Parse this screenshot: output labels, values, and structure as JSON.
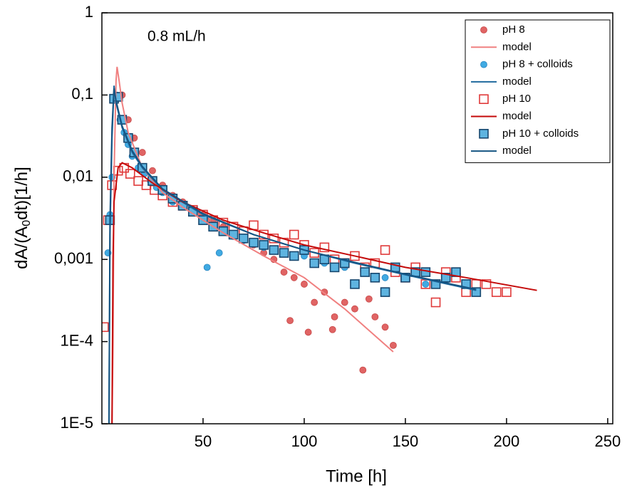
{
  "chart_data": {
    "type": "scatter",
    "annotation": "0.8 mL/h",
    "xlabel": "Time [h]",
    "ylabel": {
      "pre": "dA/(A",
      "sub": "0",
      "post": "dt)[1/h]"
    },
    "xlim": [
      0,
      252.5
    ],
    "xticks": [
      50,
      100,
      150,
      200,
      250
    ],
    "ylim": [
      1e-05,
      1
    ],
    "yscale": "log",
    "yticks": [
      {
        "value": 1e-05,
        "label": "1E-5"
      },
      {
        "value": 0.0001,
        "label": "1E-4"
      },
      {
        "value": 0.001,
        "label": "0,001"
      },
      {
        "value": 0.01,
        "label": "0,01"
      },
      {
        "value": 0.1,
        "label": "0,1"
      },
      1
    ],
    "legend": "upper right",
    "series": [
      {
        "name": "pH 8",
        "marker": "circle",
        "color": "#e06464",
        "edgecolor": "#c84848",
        "x": [
          7,
          10,
          13,
          16,
          20,
          25,
          30,
          35,
          40,
          45,
          50,
          55,
          60,
          65,
          70,
          75,
          80,
          85,
          90,
          93,
          95,
          100,
          102,
          105,
          110,
          114,
          115,
          120,
          125,
          129,
          132,
          135,
          140,
          144
        ],
        "values": [
          0.09,
          0.1,
          0.05,
          0.03,
          0.02,
          0.012,
          0.008,
          0.006,
          0.005,
          0.004,
          0.0035,
          0.003,
          0.0025,
          0.002,
          0.0018,
          0.0015,
          0.0012,
          0.001,
          0.0007,
          0.00018,
          0.0006,
          0.0005,
          0.00013,
          0.0003,
          0.0004,
          0.00014,
          0.0002,
          0.0003,
          0.00025,
          4.5e-05,
          0.00033,
          0.0002,
          0.00015,
          9e-05
        ]
      },
      {
        "name": "model",
        "marker": "line",
        "color": "#f08080",
        "x": [
          5,
          5.5,
          6,
          7,
          7.5,
          8.5,
          10,
          13,
          20,
          30,
          40,
          50,
          60,
          80,
          100,
          120,
          144
        ],
        "values": [
          1e-05,
          0.0001,
          0.01,
          0.15,
          0.22,
          0.15,
          0.08,
          0.035,
          0.013,
          0.0065,
          0.0043,
          0.003,
          0.0021,
          0.0011,
          0.0006,
          0.00025,
          7.5e-05
        ]
      },
      {
        "name": "pH 8 + colloids",
        "marker": "circle",
        "color": "#40aae2",
        "edgecolor": "#2a86c0",
        "x": [
          3,
          4,
          5,
          6,
          7,
          9,
          11,
          13,
          15,
          18,
          21,
          24,
          27,
          30,
          35,
          40,
          45,
          50,
          55,
          60,
          65,
          70,
          80,
          90,
          100,
          110,
          120,
          130,
          140,
          150,
          160,
          170,
          180,
          52,
          58
        ],
        "values": [
          0.0012,
          0.0035,
          0.01,
          0.09,
          0.1,
          0.05,
          0.035,
          0.025,
          0.018,
          0.013,
          0.011,
          0.009,
          0.0075,
          0.0065,
          0.005,
          0.0045,
          0.0038,
          0.003,
          0.0025,
          0.0023,
          0.0019,
          0.0017,
          0.0014,
          0.0012,
          0.0011,
          0.0009,
          0.0008,
          0.0007,
          0.0006,
          0.0006,
          0.0005,
          0.00055,
          0.0005,
          0.0008,
          0.0012
        ]
      },
      {
        "name": "model",
        "marker": "line",
        "color": "#1f6a9e",
        "x": [
          3.5,
          4,
          5,
          6,
          7,
          10,
          15,
          20,
          30,
          50,
          75,
          100,
          125,
          150,
          185
        ],
        "values": [
          1e-05,
          0.002,
          0.03,
          0.13,
          0.08,
          0.04,
          0.02,
          0.013,
          0.007,
          0.0035,
          0.002,
          0.0013,
          0.0009,
          0.00065,
          0.00042
        ]
      },
      {
        "name": "pH 10",
        "marker": "square",
        "color": "none",
        "edgecolor": "#e03a3a",
        "x": [
          1,
          3,
          5,
          8,
          11,
          14,
          18,
          22,
          26,
          30,
          35,
          40,
          45,
          50,
          55,
          60,
          65,
          70,
          75,
          80,
          85,
          90,
          95,
          100,
          105,
          110,
          115,
          120,
          125,
          130,
          135,
          140,
          145,
          150,
          155,
          160,
          165,
          170,
          175,
          180,
          185,
          190,
          195,
          200
        ],
        "values": [
          0.00015,
          0.003,
          0.008,
          0.012,
          0.013,
          0.011,
          0.009,
          0.008,
          0.007,
          0.006,
          0.005,
          0.0045,
          0.004,
          0.0035,
          0.003,
          0.0028,
          0.0025,
          0.0022,
          0.0026,
          0.002,
          0.0018,
          0.0016,
          0.002,
          0.0015,
          0.0012,
          0.0014,
          0.001,
          0.0009,
          0.0011,
          0.0008,
          0.0009,
          0.0013,
          0.0007,
          0.0006,
          0.0008,
          0.0005,
          0.0003,
          0.0007,
          0.0006,
          0.0004,
          0.0005,
          0.0005,
          0.0004,
          0.0004
        ]
      },
      {
        "name": "model",
        "marker": "line",
        "color": "#c40a0a",
        "x": [
          5,
          5.5,
          6,
          8,
          10,
          15,
          25,
          40,
          60,
          80,
          100,
          125,
          150,
          180,
          215
        ],
        "values": [
          1e-05,
          0.001,
          0.005,
          0.013,
          0.015,
          0.013,
          0.0085,
          0.005,
          0.003,
          0.0021,
          0.0015,
          0.0011,
          0.0008,
          0.0006,
          0.00042
        ]
      },
      {
        "name": "pH 10 + colloids",
        "marker": "square",
        "color": "#5eb4e0",
        "edgecolor": "#17476e",
        "x": [
          4,
          6,
          8,
          10,
          13,
          16,
          20,
          25,
          30,
          35,
          40,
          45,
          50,
          55,
          60,
          65,
          70,
          75,
          80,
          85,
          90,
          95,
          100,
          105,
          110,
          115,
          120,
          125,
          130,
          135,
          140,
          145,
          150,
          155,
          160,
          165,
          170,
          175,
          180,
          185
        ],
        "values": [
          0.003,
          0.09,
          0.095,
          0.05,
          0.03,
          0.02,
          0.013,
          0.009,
          0.007,
          0.0055,
          0.0045,
          0.0038,
          0.003,
          0.0025,
          0.0022,
          0.002,
          0.0018,
          0.0016,
          0.0015,
          0.0013,
          0.0012,
          0.0011,
          0.0013,
          0.0009,
          0.001,
          0.0008,
          0.0009,
          0.0005,
          0.0007,
          0.0006,
          0.0004,
          0.0008,
          0.0006,
          0.0007,
          0.0007,
          0.0005,
          0.0006,
          0.0007,
          0.0005,
          0.0004
        ]
      },
      {
        "name": "model",
        "marker": "line",
        "color": "#155482",
        "x": [
          3.5,
          4,
          5,
          6,
          7,
          10,
          15,
          20,
          30,
          50,
          75,
          100,
          125,
          150,
          185
        ],
        "values": [
          1e-05,
          0.003,
          0.04,
          0.12,
          0.085,
          0.042,
          0.021,
          0.0135,
          0.0072,
          0.0036,
          0.002,
          0.0013,
          0.00092,
          0.00066,
          0.00043
        ]
      }
    ]
  }
}
